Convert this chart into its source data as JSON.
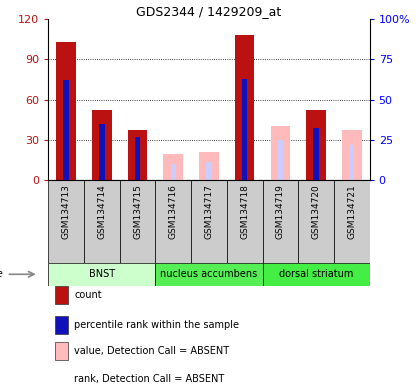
{
  "title": "GDS2344 / 1429209_at",
  "samples": [
    "GSM134713",
    "GSM134714",
    "GSM134715",
    "GSM134716",
    "GSM134717",
    "GSM134718",
    "GSM134719",
    "GSM134720",
    "GSM134721"
  ],
  "count_values": [
    103,
    52,
    37,
    0,
    0,
    108,
    0,
    52,
    0
  ],
  "percentile_rank_values": [
    62,
    35,
    27,
    0,
    0,
    63,
    0,
    32,
    0
  ],
  "absent_value_values": [
    0,
    0,
    0,
    19,
    21,
    0,
    40,
    0,
    37
  ],
  "absent_rank_values": [
    0,
    0,
    0,
    10,
    11,
    0,
    25,
    0,
    22
  ],
  "ylim_left": [
    0,
    120
  ],
  "ylim_right": [
    0,
    100
  ],
  "yticks_left": [
    0,
    30,
    60,
    90,
    120
  ],
  "yticks_right": [
    0,
    25,
    50,
    75,
    100
  ],
  "ytick_labels_left": [
    "0",
    "30",
    "60",
    "90",
    "120"
  ],
  "ytick_labels_right": [
    "0",
    "25",
    "50",
    "75",
    "100%"
  ],
  "count_color": "#bb1111",
  "percentile_color": "#1111bb",
  "absent_value_color": "#ffbbbb",
  "absent_rank_color": "#ccccff",
  "tissue_groups": [
    {
      "label": "BNST",
      "start": 0,
      "end": 2,
      "color": "#ccffcc"
    },
    {
      "label": "nucleus accumbens",
      "start": 3,
      "end": 5,
      "color": "#55ee55"
    },
    {
      "label": "dorsal striatum",
      "start": 6,
      "end": 8,
      "color": "#44ee44"
    }
  ],
  "legend_items": [
    {
      "color": "#bb1111",
      "label": "count"
    },
    {
      "color": "#1111bb",
      "label": "percentile rank within the sample"
    },
    {
      "color": "#ffbbbb",
      "label": "value, Detection Call = ABSENT"
    },
    {
      "color": "#ccccff",
      "label": "rank, Detection Call = ABSENT"
    }
  ]
}
